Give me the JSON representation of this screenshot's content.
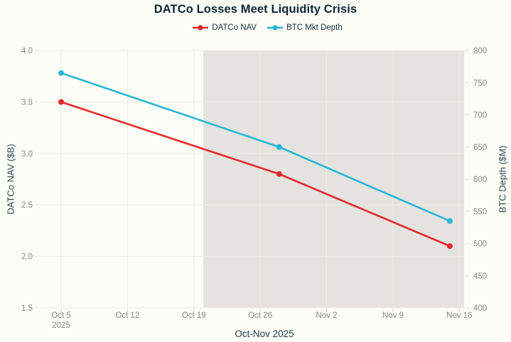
{
  "chart_data": {
    "type": "line",
    "title": "DATCo Losses Meet Liquidity Crisis",
    "xlabel": "Oct-Nov 2025",
    "x_tick_labels": [
      "Oct 5",
      "Oct 12",
      "Oct 19",
      "Oct 26",
      "Nov 2",
      "Nov 9",
      "Nov 16"
    ],
    "x_tick_days": [
      0,
      7,
      14,
      21,
      28,
      35,
      42
    ],
    "x_first_tick_sublabel": "2025",
    "x_range_days": [
      -2.25,
      42.5
    ],
    "grid": true,
    "legend_position": "top-center",
    "y_left": {
      "label": "DATCo NAV ($B)",
      "range": [
        1.5,
        4.0
      ],
      "tick_labels": [
        "4.0",
        "3.5",
        "3.0",
        "2.5",
        "2.0",
        "1.5"
      ],
      "tick_values": [
        4.0,
        3.5,
        3.0,
        2.5,
        2.0,
        1.5
      ]
    },
    "y_right": {
      "label": "BTC Depth ($M)",
      "range": [
        400,
        800
      ],
      "tick_values": [
        800,
        750,
        700,
        650,
        600,
        550,
        500,
        450,
        400
      ]
    },
    "shaded_region": {
      "start_day": 15,
      "end_day": 42.5,
      "color": "#e4e3df"
    },
    "series": [
      {
        "name": "DATCo NAV",
        "axis": "left",
        "color": "#e6282d",
        "points": [
          {
            "day": 0,
            "date": "Oct 5",
            "value": 3.5
          },
          {
            "day": 23,
            "date": "Oct 28",
            "value": 2.8
          },
          {
            "day": 41,
            "date": "Nov 15",
            "value": 2.1
          }
        ]
      },
      {
        "name": "BTC Mkt Depth",
        "axis": "right",
        "color": "#28b6d7",
        "points": [
          {
            "day": 0,
            "date": "Oct 5",
            "value": 765
          },
          {
            "day": 23,
            "date": "Oct 28",
            "value": 650
          },
          {
            "day": 41,
            "date": "Nov 15",
            "value": 535
          }
        ]
      }
    ],
    "style": {
      "background": "#fcfdf6",
      "gridline_color": "#edece6",
      "tick_mark_color": "#d9d8d2",
      "tick_label_color": "#85888a",
      "title_color": "#0c2531",
      "axis_title_color": "#2b4653"
    }
  }
}
